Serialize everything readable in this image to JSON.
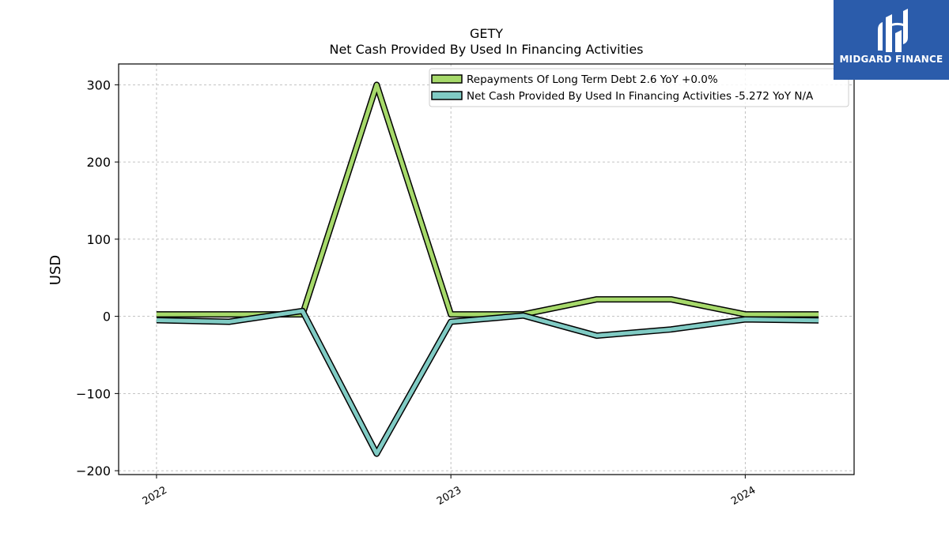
{
  "chart_data": {
    "type": "line",
    "title": "GETY",
    "subtitle": "Net Cash Provided By Used In Financing Activities",
    "xlabel": "",
    "ylabel": "USD",
    "ylim": [
      -205,
      327
    ],
    "yticks": [
      -200,
      -100,
      0,
      100,
      200,
      300
    ],
    "ytick_labels": [
      "−200",
      "−100",
      "0",
      "100",
      "200",
      "300"
    ],
    "xlim": [
      "2021-11-15",
      "2024-05-15"
    ],
    "xticks": [
      "2022-01-01",
      "2023-01-01",
      "2024-01-01"
    ],
    "xtick_labels": [
      "2022",
      "2023",
      "2024"
    ],
    "grid": true,
    "legend_position": "top-right",
    "x": [
      "2022-01-01",
      "2022-04-01",
      "2022-07-01",
      "2022-10-01",
      "2023-01-01",
      "2023-04-01",
      "2023-07-01",
      "2023-10-01",
      "2024-01-01",
      "2024-04-01"
    ],
    "series": [
      {
        "name": "Repayments Of Long Term Debt  2.6 YoY +0.0%",
        "color": "#a6d96a",
        "values": [
          2.6,
          2.6,
          2.6,
          300,
          2.6,
          2.6,
          22,
          22,
          2.6,
          2.6
        ]
      },
      {
        "name": "Net Cash Provided By Used In Financing Activities  -5.272 YoY N/A",
        "color": "#80cbc4",
        "values": [
          -5,
          -7,
          7,
          -178,
          -7,
          1,
          -25,
          -17,
          -4,
          -5.272
        ]
      }
    ]
  },
  "logo": {
    "text": "MIDGARD FINANCE",
    "color": "#2b5cab"
  }
}
